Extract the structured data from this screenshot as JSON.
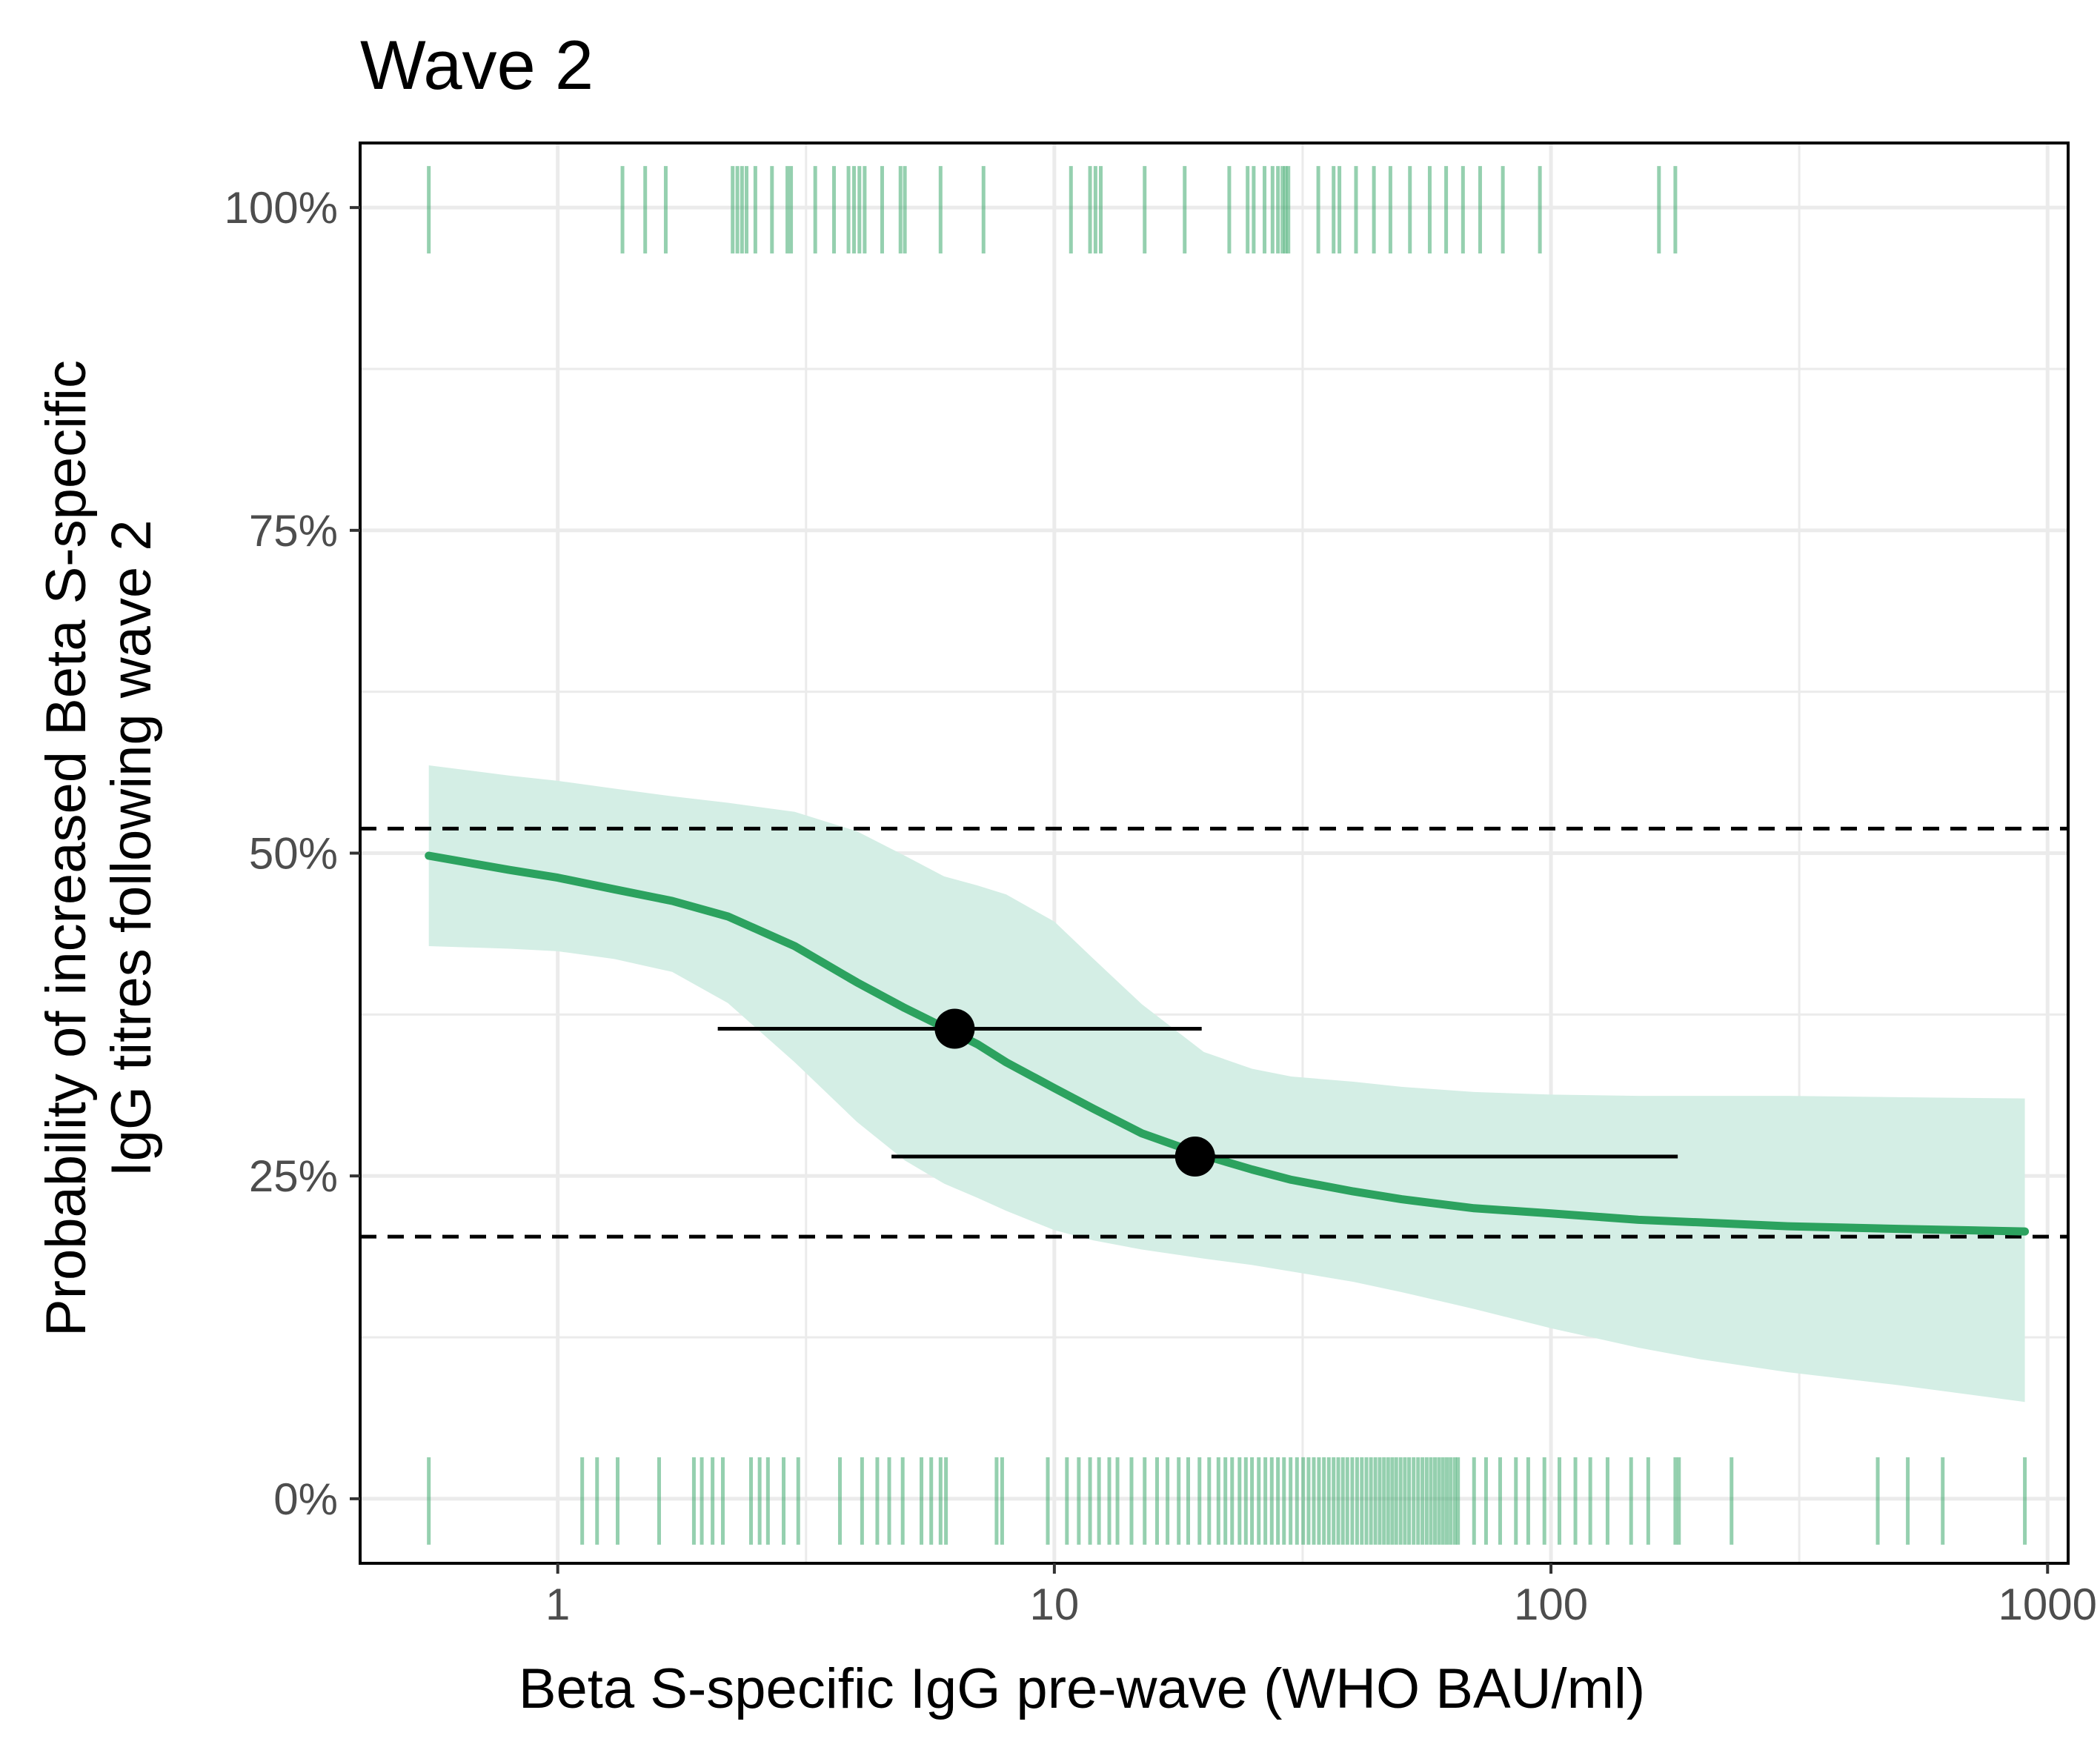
{
  "chart_data": {
    "type": "line",
    "title": "Wave 2",
    "xlabel": "Beta S-specific IgG pre-wave (WHO BAU/ml)",
    "ylabel_lines": [
      "Probability of increased Beta S-specific",
      "IgG titres following wave 2"
    ],
    "x_scale": "log10",
    "xlim": [
      0.4,
      1100
    ],
    "ylim": [
      -0.05,
      1.05
    ],
    "x_ticks": [
      1,
      10,
      100,
      1000
    ],
    "x_tick_labels": [
      "1",
      "10",
      "100",
      "1000"
    ],
    "y_ticks": [
      0,
      0.25,
      0.5,
      0.75,
      1.0
    ],
    "y_tick_labels": [
      "0%",
      "25%",
      "50%",
      "75%",
      "100%"
    ],
    "grid": true,
    "colors": {
      "curve": "#2ca25f",
      "ribbon": "#d4eee5",
      "rug": "#2ca25f",
      "points": "#000000",
      "reference_lines": "#000000",
      "grid": "#ebebeb",
      "panel_border": "#000000"
    },
    "fitted_curve": {
      "x": [
        0.55,
        0.8,
        1,
        1.3,
        1.7,
        2.2,
        3,
        4,
        5,
        6,
        7,
        8,
        10,
        12,
        15,
        20,
        25,
        30,
        40,
        50,
        70,
        100,
        150,
        200,
        300,
        500,
        900
      ],
      "y": [
        0.498,
        0.487,
        0.481,
        0.472,
        0.463,
        0.451,
        0.428,
        0.4,
        0.38,
        0.365,
        0.352,
        0.338,
        0.318,
        0.302,
        0.283,
        0.266,
        0.255,
        0.247,
        0.238,
        0.232,
        0.225,
        0.221,
        0.216,
        0.214,
        0.211,
        0.209,
        0.207
      ]
    },
    "confidence_band": {
      "x": [
        0.55,
        0.8,
        1,
        1.3,
        1.7,
        2.2,
        3,
        4,
        5,
        6,
        7,
        8,
        10,
        12,
        15,
        20,
        25,
        30,
        40,
        50,
        70,
        100,
        150,
        200,
        300,
        500,
        900
      ],
      "lower": [
        0.428,
        0.426,
        0.424,
        0.418,
        0.408,
        0.384,
        0.338,
        0.292,
        0.262,
        0.244,
        0.233,
        0.223,
        0.208,
        0.2,
        0.193,
        0.186,
        0.181,
        0.176,
        0.168,
        0.16,
        0.147,
        0.132,
        0.117,
        0.108,
        0.098,
        0.088,
        0.075
      ],
      "upper": [
        0.568,
        0.56,
        0.556,
        0.55,
        0.544,
        0.539,
        0.532,
        0.517,
        0.498,
        0.482,
        0.475,
        0.468,
        0.447,
        0.418,
        0.383,
        0.346,
        0.333,
        0.327,
        0.323,
        0.319,
        0.315,
        0.313,
        0.312,
        0.312,
        0.312,
        0.311,
        0.31
      ]
    },
    "reference_lines_y": [
      0.519,
      0.203
    ],
    "point_estimates": [
      {
        "x": 6.3,
        "y": 0.364,
        "xmin": 2.1,
        "xmax": 19.8
      },
      {
        "x": 19.2,
        "y": 0.265,
        "xmin": 4.7,
        "xmax": 180
      }
    ],
    "rug_events": [
      0.55,
      1.35,
      1.5,
      1.65,
      2.25,
      2.3,
      2.35,
      2.4,
      2.5,
      2.7,
      2.9,
      2.95,
      3.3,
      3.6,
      3.85,
      3.95,
      4.05,
      4.15,
      4.5,
      4.9,
      5.0,
      5.9,
      7.2,
      10.8,
      11.8,
      12.1,
      12.4,
      15.2,
      18.3,
      22.5,
      24.5,
      25.2,
      26.5,
      27.5,
      28.2,
      28.8,
      29.2,
      29.6,
      34,
      36.5,
      37.5,
      40.5,
      44,
      47.5,
      52,
      57,
      61.5,
      66.5,
      72,
      80,
      95,
      165,
      178
    ],
    "rug_nonevents": [
      0.55,
      1.12,
      1.2,
      1.32,
      1.6,
      1.88,
      1.95,
      2.05,
      2.15,
      2.45,
      2.55,
      2.65,
      2.85,
      3.05,
      3.7,
      4.1,
      4.4,
      4.65,
      4.95,
      5.4,
      5.65,
      5.9,
      6.05,
      7.65,
      7.85,
      9.7,
      10.6,
      11.2,
      11.8,
      12.3,
      12.9,
      13.4,
      14.3,
      15.2,
      16.1,
      16.9,
      17.8,
      18.6,
      19.6,
      20.5,
      21.4,
      22.1,
      22.8,
      23.6,
      24.3,
      25,
      25.8,
      26.6,
      27.4,
      28.2,
      29,
      29.9,
      30.8,
      31.7,
      32.5,
      33.3,
      34.1,
      34.9,
      35.7,
      36.5,
      37.3,
      38.1,
      38.9,
      39.8,
      40.7,
      41.6,
      42.5,
      43.4,
      44.3,
      45.2,
      46.1,
      47,
      47.9,
      48.8,
      49.8,
      50.8,
      51.8,
      52.9,
      54,
      55.1,
      56.2,
      57.3,
      58.4,
      59.5,
      60.6,
      61.7,
      62.8,
      64,
      65,
      70,
      74,
      79,
      85,
      90,
      97,
      104,
      112,
      120,
      130,
      145,
      157,
      178,
      181,
      231,
      455,
      523,
      615,
      900
    ]
  }
}
